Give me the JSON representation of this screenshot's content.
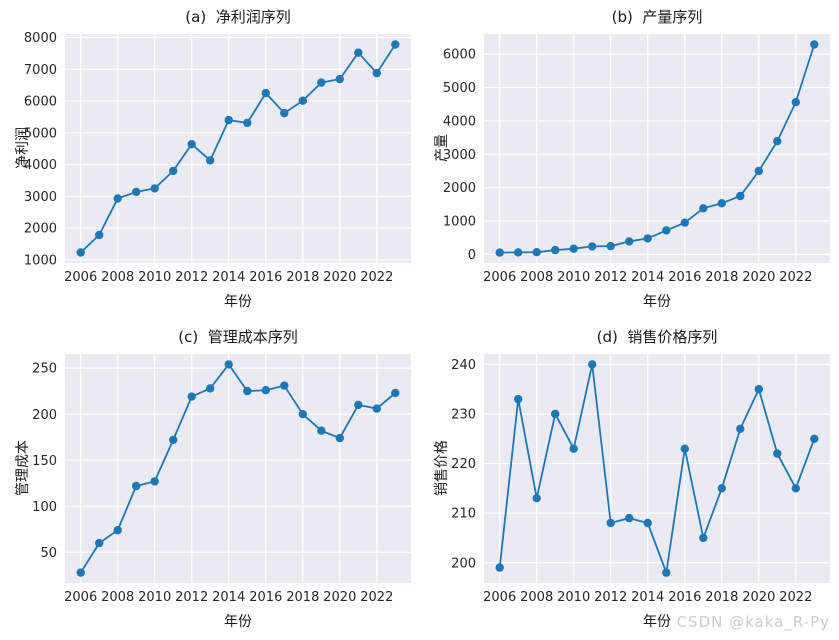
{
  "figure": {
    "background": "#ffffff",
    "watermark": "CSDN @kaka_R-Py",
    "watermark_color": "#cccccc"
  },
  "style": {
    "plot_bg": "#eaeaf2",
    "grid_color": "#ffffff",
    "line_color": "#1f77b4",
    "marker_color": "#1f77b4",
    "text_color": "#262626",
    "tick_font_px": 13
  },
  "chart_data": [
    {
      "type": "line",
      "panel": "a",
      "title": "(a)  净利润序列",
      "xlabel": "年份",
      "ylabel": "净利润",
      "x": [
        2006,
        2007,
        2008,
        2009,
        2010,
        2011,
        2012,
        2013,
        2014,
        2015,
        2016,
        2017,
        2018,
        2019,
        2020,
        2021,
        2022,
        2023
      ],
      "values": [
        1230,
        1780,
        2930,
        3140,
        3250,
        3800,
        4640,
        4130,
        5400,
        5310,
        6250,
        5620,
        6010,
        6580,
        6690,
        7520,
        6880,
        7780
      ],
      "xticks": [
        2006,
        2008,
        2010,
        2012,
        2014,
        2016,
        2018,
        2020,
        2022
      ],
      "yticks": [
        1000,
        2000,
        3000,
        4000,
        5000,
        6000,
        7000,
        8000
      ],
      "xlim": [
        2005.15,
        2023.85
      ],
      "ylim": [
        900,
        8110
      ],
      "grid": true,
      "legend": false,
      "marker": "circle"
    },
    {
      "type": "line",
      "panel": "b",
      "title": "(b)  产量序列",
      "xlabel": "年份",
      "ylabel": "产量",
      "x": [
        2006,
        2007,
        2008,
        2009,
        2010,
        2011,
        2012,
        2013,
        2014,
        2015,
        2016,
        2017,
        2018,
        2019,
        2020,
        2021,
        2022,
        2023
      ],
      "values": [
        55,
        60,
        65,
        130,
        170,
        240,
        250,
        390,
        480,
        720,
        950,
        1380,
        1530,
        1750,
        2500,
        3390,
        4560,
        6290
      ],
      "xticks": [
        2006,
        2008,
        2010,
        2012,
        2014,
        2016,
        2018,
        2020,
        2022
      ],
      "yticks": [
        0,
        1000,
        2000,
        3000,
        4000,
        5000,
        6000
      ],
      "xlim": [
        2005.15,
        2023.85
      ],
      "ylim": [
        -257,
        6602
      ],
      "grid": true,
      "legend": false,
      "marker": "circle"
    },
    {
      "type": "line",
      "panel": "c",
      "title": "(c)  管理成本序列",
      "xlabel": "年份",
      "ylabel": "管理成本",
      "x": [
        2006,
        2007,
        2008,
        2009,
        2010,
        2011,
        2012,
        2013,
        2014,
        2015,
        2016,
        2017,
        2018,
        2019,
        2020,
        2021,
        2022,
        2023
      ],
      "values": [
        28,
        60,
        74,
        122,
        127,
        172,
        219,
        228,
        254,
        225,
        226,
        231,
        200,
        182,
        174,
        210,
        206,
        223
      ],
      "xticks": [
        2006,
        2008,
        2010,
        2012,
        2014,
        2016,
        2018,
        2020,
        2022
      ],
      "yticks": [
        50,
        100,
        150,
        200,
        250
      ],
      "xlim": [
        2005.15,
        2023.85
      ],
      "ylim": [
        16.7,
        265.3
      ],
      "grid": true,
      "legend": false,
      "marker": "circle"
    },
    {
      "type": "line",
      "panel": "d",
      "title": "(d)  销售价格序列",
      "xlabel": "年份",
      "ylabel": "销售价格",
      "x": [
        2006,
        2007,
        2008,
        2009,
        2010,
        2011,
        2012,
        2013,
        2014,
        2015,
        2016,
        2017,
        2018,
        2019,
        2020,
        2021,
        2022,
        2023
      ],
      "values": [
        199,
        233,
        213,
        230,
        223,
        240,
        208,
        209,
        208,
        198,
        223,
        205,
        215,
        227,
        235,
        222,
        215,
        225
      ],
      "xticks": [
        2006,
        2008,
        2010,
        2012,
        2014,
        2016,
        2018,
        2020,
        2022
      ],
      "yticks": [
        200,
        210,
        220,
        230,
        240
      ],
      "xlim": [
        2005.15,
        2023.85
      ],
      "ylim": [
        195.9,
        242.1
      ],
      "grid": true,
      "legend": false,
      "marker": "circle"
    }
  ]
}
